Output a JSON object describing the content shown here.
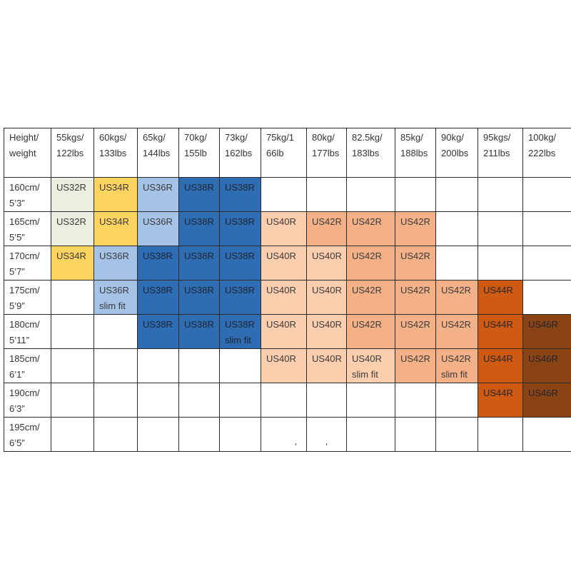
{
  "table": {
    "corner": [
      "Height/",
      "weight"
    ],
    "columns": [
      [
        "55kgs/",
        "122lbs"
      ],
      [
        "60kgs/",
        "133lbs"
      ],
      [
        "65kg/",
        "144lbs"
      ],
      [
        "70kg/",
        "155lb"
      ],
      [
        "73kg/",
        "162lbs"
      ],
      [
        "75kg/1",
        "66lb"
      ],
      [
        "80kg/",
        "177lbs"
      ],
      [
        "82.5kg/",
        "183lbs"
      ],
      [
        "85kg/",
        "188lbs"
      ],
      [
        "90kg/",
        "200lbs"
      ],
      [
        "95kgs/",
        "211lbs"
      ],
      [
        "100kg/",
        "222lbs"
      ]
    ],
    "rows": [
      {
        "height": [
          "160cm/",
          "5’3”"
        ],
        "cells": [
          {
            "lines": [
              "US32R"
            ],
            "color": "#ecefe0"
          },
          {
            "lines": [
              "US34R"
            ],
            "color": "#fed35f"
          },
          {
            "lines": [
              "US36R"
            ],
            "color": "#a4c3e6"
          },
          {
            "lines": [
              "US38R"
            ],
            "color": "#2e6db3"
          },
          {
            "lines": [
              "US38R"
            ],
            "color": "#2e6db3"
          },
          {
            "lines": [],
            "color": ""
          },
          {
            "lines": [],
            "color": ""
          },
          {
            "lines": [],
            "color": ""
          },
          {
            "lines": [],
            "color": ""
          },
          {
            "lines": [],
            "color": ""
          },
          {
            "lines": [],
            "color": ""
          },
          {
            "lines": [],
            "color": ""
          }
        ]
      },
      {
        "height": [
          "165cm/",
          "5’5”"
        ],
        "cells": [
          {
            "lines": [
              "US32R"
            ],
            "color": "#ecefe0"
          },
          {
            "lines": [
              "US34R"
            ],
            "color": "#fed35f"
          },
          {
            "lines": [
              "US36R"
            ],
            "color": "#a4c3e6"
          },
          {
            "lines": [
              "US38R"
            ],
            "color": "#2e6db3"
          },
          {
            "lines": [
              "US38R"
            ],
            "color": "#2e6db3"
          },
          {
            "lines": [
              "US40R"
            ],
            "color": "#fbcfae"
          },
          {
            "lines": [
              "US42R"
            ],
            "color": "#f4b187"
          },
          {
            "lines": [
              "US42R"
            ],
            "color": "#f4b187"
          },
          {
            "lines": [
              "US42R"
            ],
            "color": "#f4b187"
          },
          {
            "lines": [],
            "color": ""
          },
          {
            "lines": [],
            "color": ""
          },
          {
            "lines": [],
            "color": ""
          }
        ]
      },
      {
        "height": [
          "170cm/",
          "5’7”"
        ],
        "cells": [
          {
            "lines": [
              "US34R"
            ],
            "color": "#fed35f"
          },
          {
            "lines": [
              "US36R"
            ],
            "color": "#a4c3e6"
          },
          {
            "lines": [
              "US38R"
            ],
            "color": "#2e6db3"
          },
          {
            "lines": [
              "US38R"
            ],
            "color": "#2e6db3"
          },
          {
            "lines": [
              "US38R"
            ],
            "color": "#2e6db3"
          },
          {
            "lines": [
              "US40R"
            ],
            "color": "#fbcfae"
          },
          {
            "lines": [
              "US40R"
            ],
            "color": "#fbcfae"
          },
          {
            "lines": [
              "US42R"
            ],
            "color": "#f4b187"
          },
          {
            "lines": [
              "US42R"
            ],
            "color": "#f4b187"
          },
          {
            "lines": [],
            "color": ""
          },
          {
            "lines": [],
            "color": ""
          },
          {
            "lines": [],
            "color": ""
          }
        ]
      },
      {
        "height": [
          "175cm/",
          "5’9”"
        ],
        "cells": [
          {
            "lines": [],
            "color": ""
          },
          {
            "lines": [
              "US36R",
              "slim fit"
            ],
            "color": "#a4c3e6"
          },
          {
            "lines": [
              "US38R"
            ],
            "color": "#2e6db3"
          },
          {
            "lines": [
              "US38R"
            ],
            "color": "#2e6db3"
          },
          {
            "lines": [
              "US38R"
            ],
            "color": "#2e6db3"
          },
          {
            "lines": [
              "US40R"
            ],
            "color": "#fbcfae"
          },
          {
            "lines": [
              "US40R"
            ],
            "color": "#fbcfae"
          },
          {
            "lines": [
              "US42R"
            ],
            "color": "#f4b187"
          },
          {
            "lines": [
              "US42R"
            ],
            "color": "#f4b187"
          },
          {
            "lines": [
              "US42R"
            ],
            "color": "#f4b187"
          },
          {
            "lines": [
              "US44R"
            ],
            "color": "#cf5a12"
          },
          {
            "lines": [],
            "color": ""
          }
        ]
      },
      {
        "height": [
          "180cm/",
          "5’11”"
        ],
        "cells": [
          {
            "lines": [],
            "color": ""
          },
          {
            "lines": [],
            "color": ""
          },
          {
            "lines": [
              "US38R"
            ],
            "color": "#2e6db3"
          },
          {
            "lines": [
              "US38R"
            ],
            "color": "#2e6db3"
          },
          {
            "lines": [
              "US38R",
              "slim fit"
            ],
            "color": "#2e6db3"
          },
          {
            "lines": [
              "US40R"
            ],
            "color": "#fbcfae"
          },
          {
            "lines": [
              "US40R"
            ],
            "color": "#fbcfae"
          },
          {
            "lines": [
              "US42R"
            ],
            "color": "#f4b187"
          },
          {
            "lines": [
              "US42R"
            ],
            "color": "#f4b187"
          },
          {
            "lines": [
              "US42R"
            ],
            "color": "#f4b187"
          },
          {
            "lines": [
              "US44R"
            ],
            "color": "#cf5a12"
          },
          {
            "lines": [
              "US46R"
            ],
            "color": "#8a4414"
          }
        ]
      },
      {
        "height": [
          "185cm/",
          "6’1”"
        ],
        "cells": [
          {
            "lines": [],
            "color": ""
          },
          {
            "lines": [],
            "color": ""
          },
          {
            "lines": [],
            "color": ""
          },
          {
            "lines": [],
            "color": ""
          },
          {
            "lines": [],
            "color": ""
          },
          {
            "lines": [
              "US40R"
            ],
            "color": "#fbcfae"
          },
          {
            "lines": [
              "US40R"
            ],
            "color": "#fbcfae"
          },
          {
            "lines": [
              "US40R",
              "slim fit"
            ],
            "color": "#fbcfae"
          },
          {
            "lines": [
              "US42R"
            ],
            "color": "#f4b187"
          },
          {
            "lines": [
              "US42R",
              "slim fit"
            ],
            "color": "#f4b187"
          },
          {
            "lines": [
              "US44R"
            ],
            "color": "#cf5a12"
          },
          {
            "lines": [
              "US46R"
            ],
            "color": "#8a4414"
          }
        ]
      },
      {
        "height": [
          "190cm/",
          "6’3”"
        ],
        "cells": [
          {
            "lines": [],
            "color": ""
          },
          {
            "lines": [],
            "color": ""
          },
          {
            "lines": [],
            "color": ""
          },
          {
            "lines": [],
            "color": ""
          },
          {
            "lines": [],
            "color": ""
          },
          {
            "lines": [],
            "color": ""
          },
          {
            "lines": [],
            "color": ""
          },
          {
            "lines": [],
            "color": ""
          },
          {
            "lines": [],
            "color": ""
          },
          {
            "lines": [],
            "color": ""
          },
          {
            "lines": [
              "US44R"
            ],
            "color": "#cf5a12"
          },
          {
            "lines": [
              "US46R"
            ],
            "color": "#8a4414"
          }
        ]
      },
      {
        "height": [
          "195cm/",
          "6’5”"
        ],
        "cells": [
          {
            "lines": [],
            "color": ""
          },
          {
            "lines": [],
            "color": ""
          },
          {
            "lines": [],
            "color": ""
          },
          {
            "lines": [],
            "color": ""
          },
          {
            "lines": [],
            "color": ""
          },
          {
            "lines": [],
            "color": ""
          },
          {
            "lines": [],
            "color": ""
          },
          {
            "lines": [],
            "color": ""
          },
          {
            "lines": [],
            "color": ""
          },
          {
            "lines": [],
            "color": ""
          },
          {
            "lines": [],
            "color": ""
          },
          {
            "lines": [],
            "color": ""
          }
        ]
      }
    ]
  }
}
